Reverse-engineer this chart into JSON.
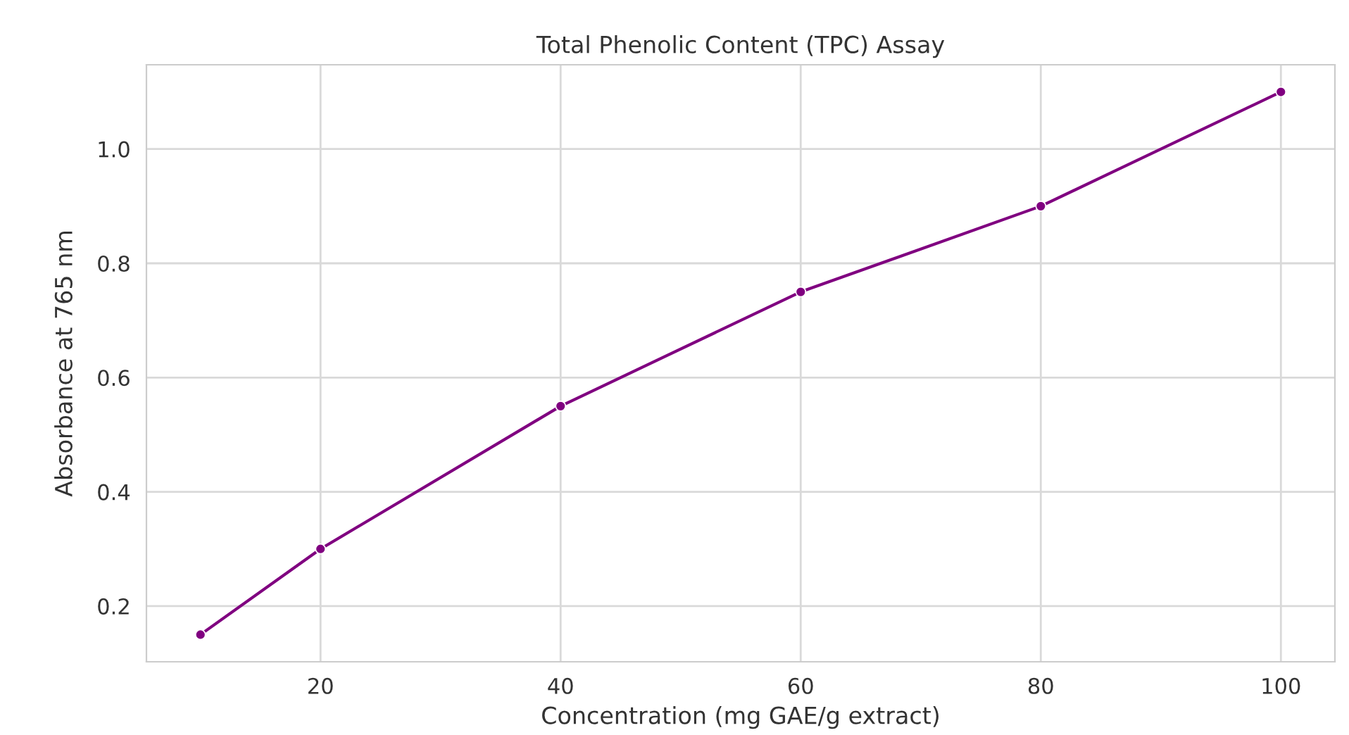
{
  "chart_data": {
    "type": "line",
    "title": "Total Phenolic Content (TPC) Assay",
    "xlabel": "Concentration (mg GAE/g extract)",
    "ylabel": "Absorbance at 765 nm",
    "x": [
      10,
      20,
      40,
      60,
      80,
      100
    ],
    "series": [
      {
        "color": "#800080",
        "values": [
          0.15,
          0.3,
          0.55,
          0.75,
          0.9,
          1.1
        ]
      }
    ],
    "xlim": [
      5.5,
      104.5
    ],
    "xticks": [
      20,
      40,
      60,
      80,
      100
    ],
    "ylim": [
      0.1025,
      1.1475
    ],
    "yticks": [
      0.2,
      0.4,
      0.6,
      0.8,
      {
        "value": 1.0,
        "label": "1.0"
      }
    ],
    "grid": true,
    "marker": "circle",
    "line_style": "solid"
  }
}
